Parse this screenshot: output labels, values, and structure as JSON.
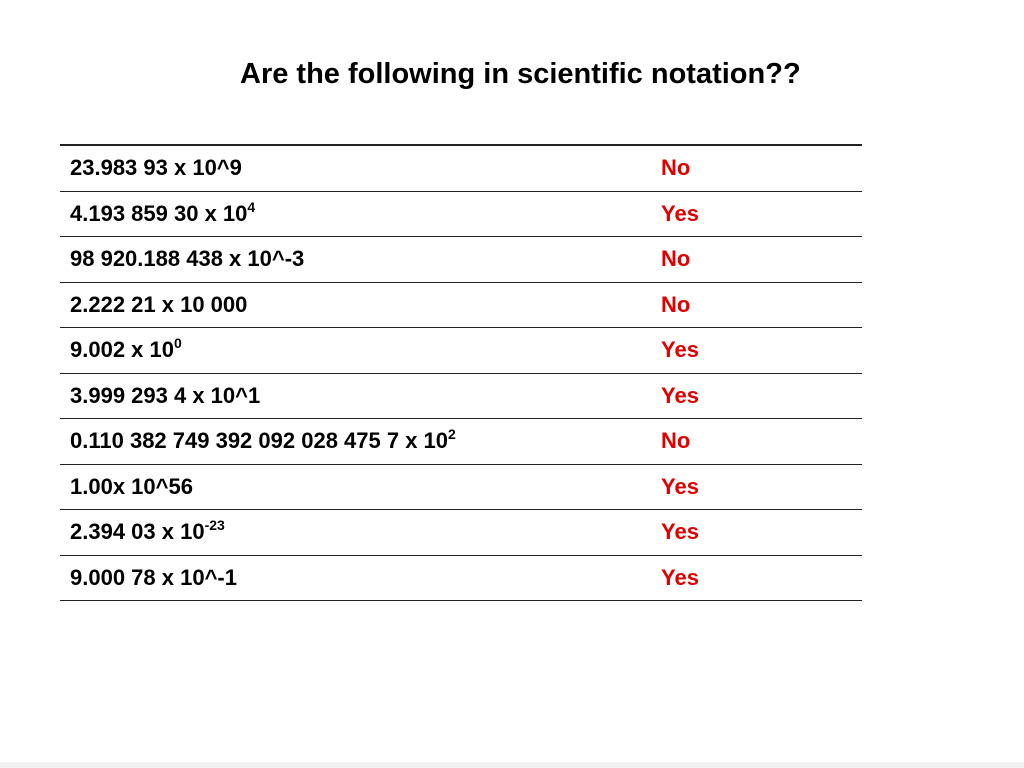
{
  "title": "Are the following in scientific notation??",
  "table": {
    "rows": [
      {
        "expr": "23.983 93 x 10^9",
        "answer": "No"
      },
      {
        "expr": "4.193 859 30 x 10",
        "sup": "4",
        "answer": "Yes"
      },
      {
        "expr": "98 920.188 438 x 10^-3",
        "answer": "No"
      },
      {
        "expr": "2.222 21 x 10 000",
        "answer": "No"
      },
      {
        "expr": "9.002 x 10",
        "sup": "0",
        "answer": "Yes"
      },
      {
        "expr": "3.999 293 4 x 10^1",
        "answer": "Yes"
      },
      {
        "expr": "0.110 382 749 392 092 028 475 7 x 10",
        "sup": "2",
        "answer": "No"
      },
      {
        "expr": "1.00x 10^56",
        "answer": "Yes"
      },
      {
        "expr": "2.394 03 x 10",
        "sup": "-23",
        "answer": "Yes"
      },
      {
        "expr": "9.000 78 x 10^-1",
        "answer": "Yes"
      }
    ]
  }
}
